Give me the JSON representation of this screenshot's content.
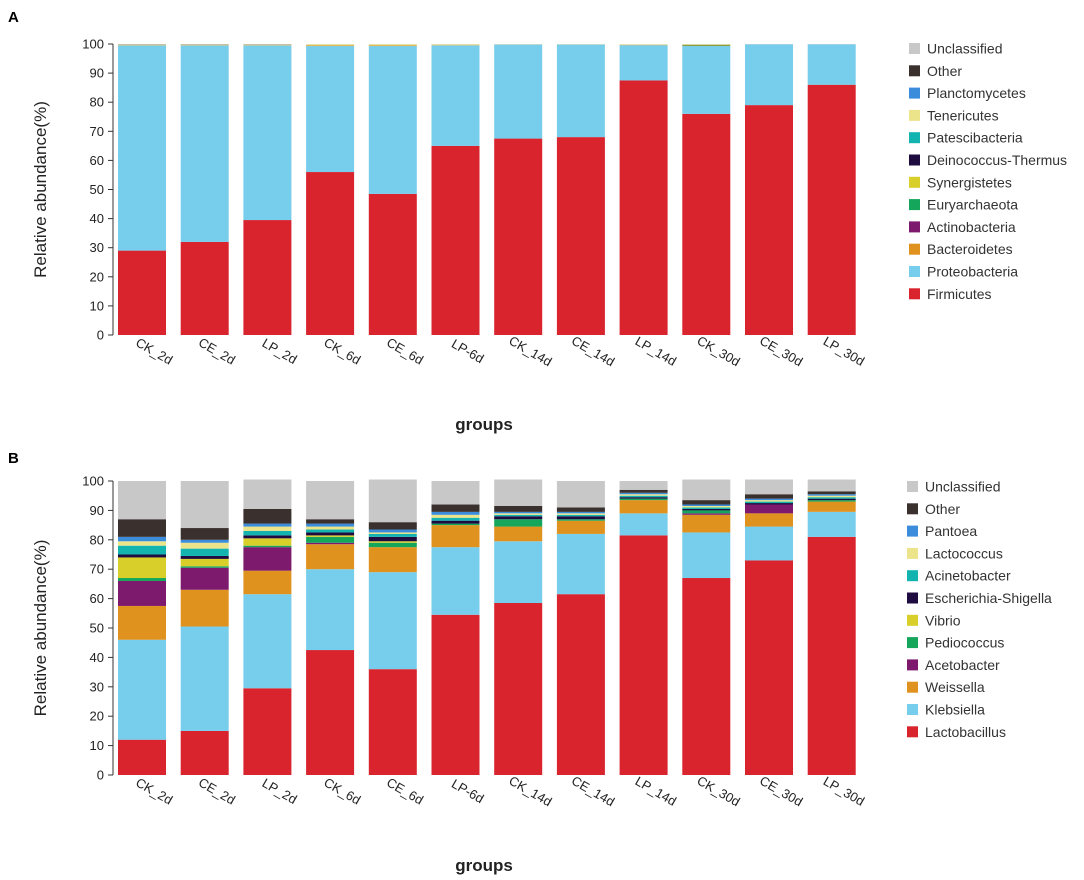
{
  "chart_data": [
    {
      "type": "bar",
      "stacked": true,
      "panel_label": "A",
      "title": "",
      "xlabel": "groups",
      "ylabel": "Relative abundance(%)",
      "ylim": [
        0,
        100
      ],
      "yticks": [
        0,
        10,
        20,
        30,
        40,
        50,
        60,
        70,
        80,
        90,
        100
      ],
      "categories": [
        "CK_2d",
        "CE_2d",
        "LP_2d",
        "CK_6d",
        "CE_6d",
        "LP-6d",
        "CK_14d",
        "CE_14d",
        "LP_14d",
        "CK_30d",
        "CE_30d",
        "LP_30d"
      ],
      "legend_position": "right",
      "series": [
        {
          "name": "Firmicutes",
          "color": "#d9232d",
          "values": [
            29,
            32,
            39.5,
            56,
            48.5,
            65,
            67.5,
            68,
            87.5,
            76,
            79,
            86
          ]
        },
        {
          "name": "Proteobacteria",
          "color": "#76cdec",
          "values": [
            70.5,
            67.5,
            60,
            43.3,
            50.8,
            34.5,
            32.3,
            31.8,
            12.1,
            23.3,
            20.9,
            13.9
          ]
        },
        {
          "name": "Bacteroidetes",
          "color": "#e0921f",
          "values": [
            0.1,
            0.1,
            0.1,
            0.2,
            0.2,
            0.1,
            0,
            0,
            0.1,
            0.2,
            0,
            0
          ]
        },
        {
          "name": "Actinobacteria",
          "color": "#7d1a6e",
          "values": [
            0,
            0,
            0,
            0,
            0,
            0,
            0,
            0,
            0,
            0,
            0,
            0
          ]
        },
        {
          "name": "Euryarchaeota",
          "color": "#14a65a",
          "values": [
            0,
            0,
            0,
            0,
            0,
            0,
            0,
            0,
            0,
            0.2,
            0,
            0
          ]
        },
        {
          "name": "Synergistetes",
          "color": "#d9cf2a",
          "values": [
            0,
            0,
            0,
            0,
            0,
            0,
            0,
            0,
            0,
            0.1,
            0,
            0
          ]
        },
        {
          "name": "Deinococcus-Thermus",
          "color": "#1e0b3f",
          "values": [
            0,
            0,
            0,
            0,
            0,
            0,
            0,
            0,
            0,
            0,
            0,
            0
          ]
        },
        {
          "name": "Patescibacteria",
          "color": "#13b4b0",
          "values": [
            0,
            0,
            0,
            0,
            0,
            0,
            0,
            0,
            0,
            0,
            0,
            0
          ]
        },
        {
          "name": "Tenericutes",
          "color": "#ece48a",
          "values": [
            0.2,
            0.2,
            0.2,
            0.4,
            0.4,
            0.3,
            0.1,
            0.1,
            0.2,
            0.1,
            0,
            0
          ]
        },
        {
          "name": "Planctomycetes",
          "color": "#3b8ddc",
          "values": [
            0,
            0,
            0,
            0,
            0,
            0,
            0,
            0,
            0,
            0,
            0,
            0
          ]
        },
        {
          "name": "Other",
          "color": "#3a302e",
          "values": [
            0.1,
            0.1,
            0.1,
            0,
            0,
            0,
            0,
            0,
            0,
            0,
            0,
            0
          ]
        },
        {
          "name": "Unclassified",
          "color": "#c8c8c8",
          "values": [
            0.1,
            0.1,
            0.1,
            0.1,
            0.1,
            0.1,
            0.1,
            0.1,
            0.1,
            0.1,
            0.1,
            0.1
          ]
        }
      ]
    },
    {
      "type": "bar",
      "stacked": true,
      "panel_label": "B",
      "title": "",
      "xlabel": "groups",
      "ylabel": "Relative abundance(%)",
      "ylim": [
        0,
        100
      ],
      "yticks": [
        0,
        10,
        20,
        30,
        40,
        50,
        60,
        70,
        80,
        90,
        100
      ],
      "categories": [
        "CK_2d",
        "CE_2d",
        "LP_2d",
        "CK_6d",
        "CE_6d",
        "LP-6d",
        "CK_14d",
        "CE_14d",
        "LP_14d",
        "CK_30d",
        "CE_30d",
        "LP_30d"
      ],
      "legend_position": "right",
      "series": [
        {
          "name": "Lactobacillus",
          "color": "#d9232d",
          "values": [
            12,
            15,
            29.5,
            42.5,
            36,
            54.5,
            58.5,
            61.5,
            81.5,
            67,
            73,
            81
          ]
        },
        {
          "name": "Klebsiella",
          "color": "#76cdec",
          "values": [
            34,
            35.5,
            32,
            27.5,
            33,
            23,
            21,
            20.5,
            7.5,
            15.5,
            11.5,
            8.5
          ]
        },
        {
          "name": "Weissella",
          "color": "#e0921f",
          "values": [
            11.5,
            12.5,
            8,
            8.5,
            8.5,
            7.5,
            5,
            4.5,
            4.5,
            6,
            4.5,
            3.5
          ]
        },
        {
          "name": "Acetobacter",
          "color": "#7d1a6e",
          "values": [
            8.5,
            7.5,
            8,
            0.5,
            0,
            0,
            0,
            0,
            0,
            0.5,
            3,
            0
          ]
        },
        {
          "name": "Pediococcus",
          "color": "#14a65a",
          "values": [
            1,
            0.5,
            0.5,
            2,
            1.5,
            0.5,
            2.5,
            0.5,
            0.5,
            1,
            0,
            0.5
          ]
        },
        {
          "name": "Vibrio",
          "color": "#d9cf2a",
          "values": [
            7,
            2.5,
            2.5,
            0.5,
            0.5,
            0,
            0,
            0,
            0,
            0,
            0,
            0
          ]
        },
        {
          "name": "Escherichia-Shigella",
          "color": "#1e0b3f",
          "values": [
            1,
            1,
            1,
            1,
            1.5,
            1,
            1,
            1,
            0.5,
            0.5,
            0.5,
            0.5
          ]
        },
        {
          "name": "Acinetobacter",
          "color": "#13b4b0",
          "values": [
            3,
            2.5,
            1.5,
            1,
            1,
            1,
            0.5,
            0.5,
            0.5,
            0.5,
            0.5,
            0.5
          ]
        },
        {
          "name": "Lactococcus",
          "color": "#ece48a",
          "values": [
            1.5,
            2,
            1.5,
            1,
            0.5,
            1,
            0.5,
            0.5,
            0.5,
            0.5,
            0.5,
            0.5
          ]
        },
        {
          "name": "Pantoea",
          "color": "#3b8ddc",
          "values": [
            1.5,
            1,
            1,
            1,
            1,
            1,
            0.5,
            0.5,
            0.5,
            0.5,
            0.5,
            0.5
          ]
        },
        {
          "name": "Other",
          "color": "#3a302e",
          "values": [
            6,
            4,
            5,
            1.5,
            2.5,
            2.5,
            2,
            1.5,
            1,
            1.5,
            1.5,
            1
          ]
        },
        {
          "name": "Unclassified",
          "color": "#c8c8c8",
          "values": [
            13,
            16,
            10,
            13,
            14.5,
            8,
            9,
            9,
            3,
            7,
            5,
            4
          ]
        }
      ]
    }
  ]
}
